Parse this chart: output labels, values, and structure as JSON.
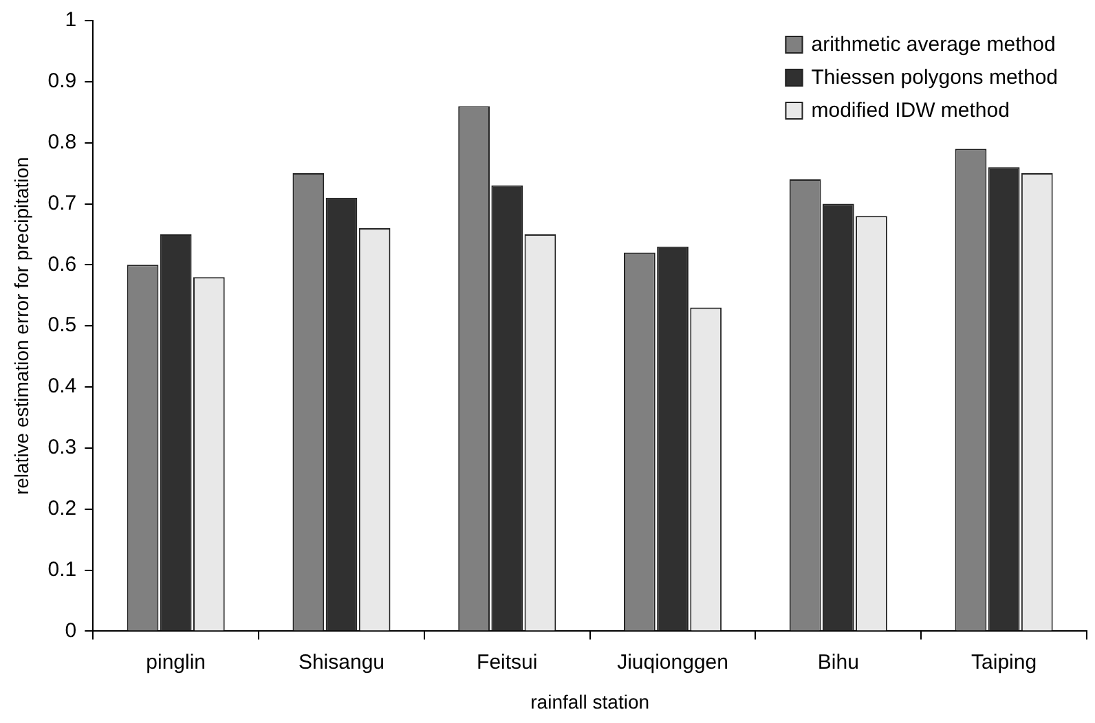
{
  "chart_data": {
    "type": "bar",
    "xlabel": "rainfall station",
    "ylabel": "relative estimation error for precipitation",
    "categories": [
      "pinglin",
      "Shisangu",
      "Feitsui",
      "Jiuqionggen",
      "Bihu",
      "Taiping"
    ],
    "series": [
      {
        "name": "arithmetic average method",
        "color": "#808080",
        "values": [
          0.6,
          0.75,
          0.86,
          0.62,
          0.74,
          0.79
        ]
      },
      {
        "name": "Thiessen polygons method",
        "color": "#303030",
        "values": [
          0.65,
          0.71,
          0.73,
          0.63,
          0.7,
          0.76
        ]
      },
      {
        "name": "modified IDW method",
        "color": "#e8e8e8",
        "values": [
          0.58,
          0.66,
          0.65,
          0.53,
          0.68,
          0.75
        ]
      }
    ],
    "ylim": [
      0,
      1
    ],
    "yticks": [
      0,
      0.1,
      0.2,
      0.3,
      0.4,
      0.5,
      0.6,
      0.7,
      0.8,
      0.9,
      1
    ],
    "grid": false,
    "legend": "top right"
  }
}
